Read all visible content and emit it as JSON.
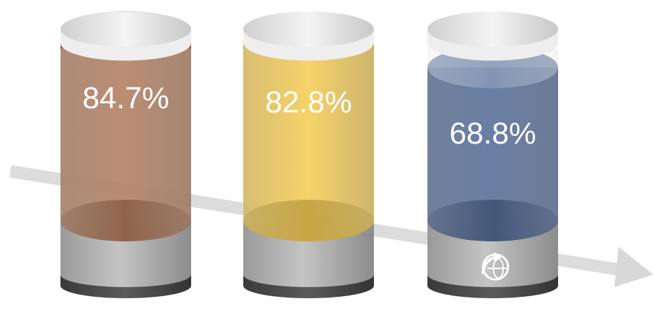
{
  "chart_data": {
    "type": "bar",
    "categories": [
      "",
      "",
      ""
    ],
    "values": [
      84.7,
      82.8,
      68.8
    ],
    "labels": [
      "84.7%",
      "82.8%",
      "68.8%"
    ],
    "unit": "%",
    "ylim": [
      0,
      100
    ],
    "colors": [
      "#a0603a",
      "#f2c02e",
      "#2e4a80"
    ],
    "trend_arrow": "down-right",
    "logo_icon": "globe-arrow-icon"
  }
}
